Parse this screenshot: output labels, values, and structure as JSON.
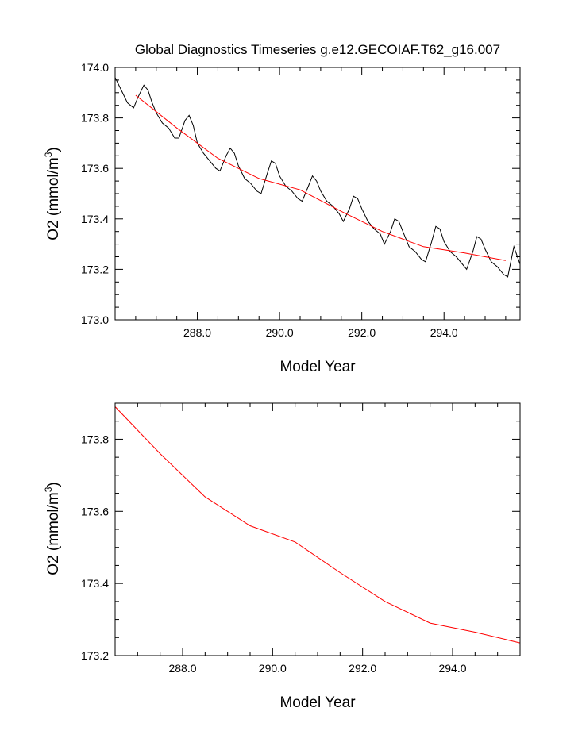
{
  "figure_title": "Global Diagnostics Timeseries g.e12.GECOIAF.T62_g16.007",
  "chart_data": [
    {
      "type": "line",
      "xlabel": "Model Year",
      "ylabel_main": "O2 (mmol/m",
      "ylabel_sup": "3",
      "ylabel_close": ")",
      "xlim": [
        286.0,
        295.85
      ],
      "ylim": [
        173.0,
        174.0
      ],
      "xticks": [
        288,
        290,
        292,
        294
      ],
      "xtick_labels": [
        "288.0",
        "290.0",
        "292.0",
        "294.0"
      ],
      "yticks": [
        173.0,
        173.2,
        173.4,
        173.6,
        173.8,
        174.0
      ],
      "ytick_labels": [
        "173.0",
        "173.2",
        "173.4",
        "173.6",
        "173.8",
        "174.0"
      ],
      "series": [
        {
          "color": "#000000",
          "x": [
            286.0,
            286.15,
            286.3,
            286.45,
            286.55,
            286.7,
            286.8,
            286.9,
            287.0,
            287.15,
            287.3,
            287.45,
            287.55,
            287.7,
            287.8,
            287.9,
            288.0,
            288.15,
            288.3,
            288.45,
            288.55,
            288.7,
            288.8,
            288.9,
            289.0,
            289.15,
            289.3,
            289.45,
            289.55,
            289.7,
            289.8,
            289.9,
            290.0,
            290.15,
            290.3,
            290.45,
            290.55,
            290.7,
            290.8,
            290.9,
            291.0,
            291.15,
            291.3,
            291.45,
            291.55,
            291.7,
            291.8,
            291.9,
            292.0,
            292.15,
            292.3,
            292.45,
            292.55,
            292.7,
            292.8,
            292.9,
            293.0,
            293.15,
            293.3,
            293.45,
            293.55,
            293.7,
            293.8,
            293.9,
            294.0,
            294.15,
            294.3,
            294.45,
            294.55,
            294.7,
            294.8,
            294.9,
            295.0,
            295.15,
            295.3,
            295.45,
            295.55,
            295.7,
            295.85
          ],
          "y": [
            173.96,
            173.91,
            173.86,
            173.84,
            173.88,
            173.93,
            173.91,
            173.86,
            173.82,
            173.78,
            173.76,
            173.72,
            173.72,
            173.79,
            173.81,
            173.77,
            173.7,
            173.66,
            173.63,
            173.6,
            173.59,
            173.65,
            173.68,
            173.66,
            173.61,
            173.56,
            173.54,
            173.51,
            173.5,
            173.58,
            173.63,
            173.62,
            173.57,
            173.53,
            173.51,
            173.48,
            173.47,
            173.53,
            173.57,
            173.55,
            173.51,
            173.47,
            173.45,
            173.42,
            173.39,
            173.44,
            173.49,
            173.48,
            173.44,
            173.39,
            173.36,
            173.34,
            173.3,
            173.35,
            173.4,
            173.39,
            173.35,
            173.29,
            173.27,
            173.24,
            173.23,
            173.31,
            173.37,
            173.36,
            173.31,
            173.27,
            173.25,
            173.22,
            173.2,
            173.27,
            173.33,
            173.32,
            173.28,
            173.23,
            173.21,
            173.18,
            173.17,
            173.29,
            173.22
          ]
        },
        {
          "color": "#ff0000",
          "x": [
            286.5,
            287.5,
            288.5,
            289.5,
            290.5,
            291.5,
            292.5,
            293.5,
            294.5,
            295.5
          ],
          "y": [
            173.89,
            173.76,
            173.64,
            173.56,
            173.515,
            173.43,
            173.35,
            173.29,
            173.265,
            173.235
          ]
        }
      ]
    },
    {
      "type": "line",
      "xlabel": "Model Year",
      "ylabel_main": "O2 (mmol/m",
      "ylabel_sup": "3",
      "ylabel_close": ")",
      "xlim": [
        286.5,
        295.5
      ],
      "ylim": [
        173.2,
        173.9
      ],
      "xticks": [
        288,
        290,
        292,
        294
      ],
      "xtick_labels": [
        "288.0",
        "290.0",
        "292.0",
        "294.0"
      ],
      "yticks": [
        173.2,
        173.4,
        173.6,
        173.8
      ],
      "ytick_labels": [
        "173.2",
        "173.4",
        "173.6",
        "173.8"
      ],
      "series": [
        {
          "color": "#ff0000",
          "x": [
            286.5,
            287.5,
            288.5,
            289.5,
            290.5,
            291.5,
            292.5,
            293.5,
            294.5,
            295.5
          ],
          "y": [
            173.89,
            173.76,
            173.64,
            173.56,
            173.515,
            173.43,
            173.35,
            173.29,
            173.265,
            173.235
          ]
        }
      ]
    }
  ]
}
